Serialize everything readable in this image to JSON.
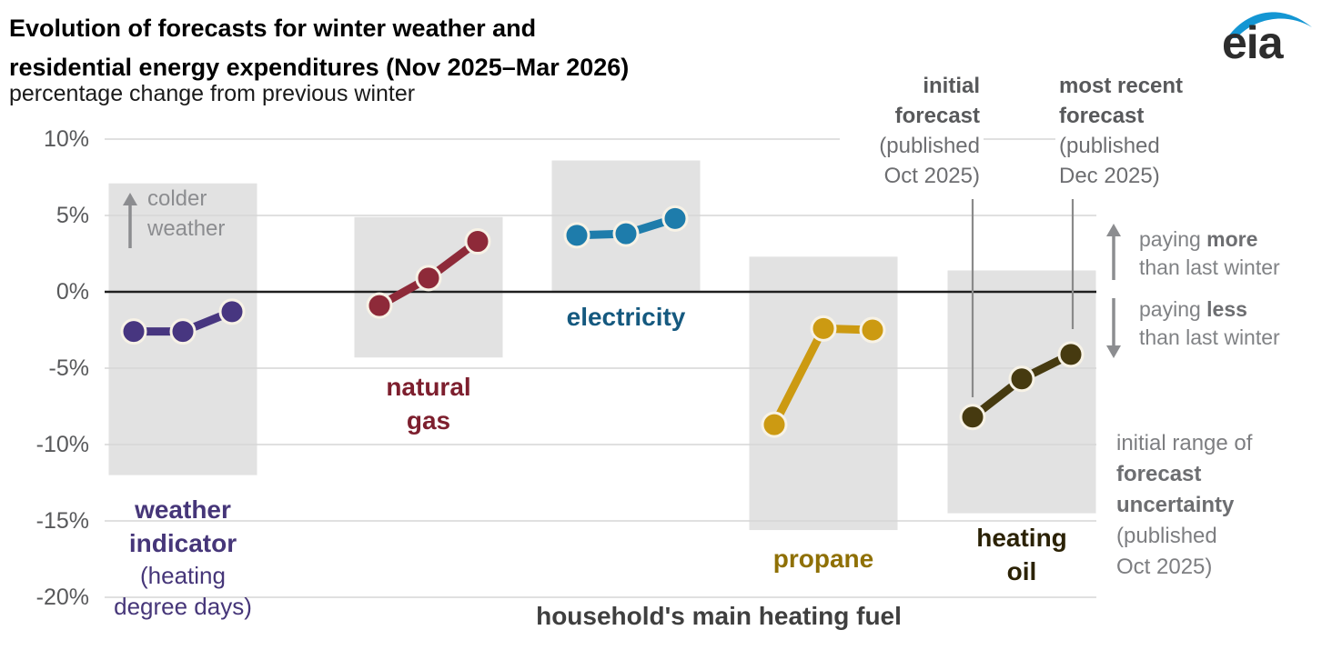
{
  "header": {
    "title_line1": "Evolution of forecasts for winter weather and",
    "title_line2": "residential energy expenditures (Nov 2025–Mar 2026)",
    "subtitle": "percentage change from previous winter"
  },
  "logo": {
    "text": "eia",
    "swoosh_color": "#1496d3"
  },
  "annotations": {
    "initial_forecast": {
      "bold1": "initial",
      "bold2": "forecast",
      "line3": "(published",
      "line4": "Oct 2025)"
    },
    "most_recent_forecast": {
      "bold1": "most recent",
      "bold2": "forecast",
      "line3": "(published",
      "line4": "Dec 2025)"
    },
    "paying_more": {
      "prefix": "paying ",
      "bold": "more",
      "line2": "than last winter"
    },
    "paying_less": {
      "prefix": "paying ",
      "bold": "less",
      "line2": "than last winter"
    },
    "uncertainty_note": {
      "line1": "initial range of",
      "bold1": "forecast",
      "bold2": "uncertainty",
      "line3": "(published",
      "line4": "Oct 2025)"
    },
    "colder_weather": {
      "line1": "colder",
      "line2": "weather"
    }
  },
  "x_axis_label": "household's main heating fuel",
  "chart_data": {
    "type": "line",
    "title": "Evolution of forecasts for winter weather and residential energy expenditures (Nov 2025–Mar 2026)",
    "subtitle": "percentage change from previous winter",
    "xlabel": "household's main heating fuel",
    "ylabel": "percentage change from previous winter",
    "ylim": [
      -20,
      10
    ],
    "grid": true,
    "y_axis": {
      "ticks": [
        "10%",
        "5%",
        "0%",
        "-5%",
        "-10%",
        "-15%",
        "-20%"
      ],
      "tick_values": [
        10,
        5,
        0,
        -5,
        -10,
        -15,
        -20
      ],
      "unit": "%"
    },
    "point_meaning": [
      "initial forecast (published Oct 2025)",
      "interim forecast",
      "most recent forecast (published Dec 2025)"
    ],
    "uncertainty_box_meaning": "initial range of forecast uncertainty (published Oct 2025)",
    "uncertainty_box_color": "#e2e2e2",
    "groups": [
      {
        "id": "weather-indicator",
        "label_lines": [
          {
            "text": "weather",
            "bold": true
          },
          {
            "text": "indicator",
            "bold": true
          },
          {
            "text": "(heating",
            "bold": false
          },
          {
            "text": "degree days)",
            "bold": false
          }
        ],
        "color": "#473680",
        "label_color": "#463679",
        "values": [
          -2.6,
          -2.6,
          -1.3
        ],
        "uncertainty_range": [
          7.1,
          -12.0
        ]
      },
      {
        "id": "natural-gas",
        "label_lines": [
          {
            "text": "natural",
            "bold": true
          },
          {
            "text": "gas",
            "bold": true
          }
        ],
        "color": "#8e2a39",
        "label_color": "#7d1f2e",
        "values": [
          -0.9,
          0.9,
          3.3
        ],
        "uncertainty_range": [
          4.9,
          -4.3
        ]
      },
      {
        "id": "electricity",
        "label_lines": [
          {
            "text": "electricity",
            "bold": true
          }
        ],
        "color": "#1e7cab",
        "label_color": "#15597f",
        "values": [
          3.7,
          3.8,
          4.8
        ],
        "uncertainty_range": [
          8.6,
          0.0
        ]
      },
      {
        "id": "propane",
        "label_lines": [
          {
            "text": "propane",
            "bold": true
          }
        ],
        "color": "#cc9a12",
        "label_color": "#8f7005",
        "values": [
          -8.7,
          -2.4,
          -2.5
        ],
        "uncertainty_range": [
          2.3,
          -15.6
        ]
      },
      {
        "id": "heating-oil",
        "label_lines": [
          {
            "text": "heating",
            "bold": true
          },
          {
            "text": "oil",
            "bold": true
          }
        ],
        "color": "#463a10",
        "label_color": "#2b2205",
        "values": [
          -8.2,
          -5.7,
          -4.1
        ],
        "uncertainty_range": [
          1.4,
          -14.5
        ]
      }
    ]
  }
}
